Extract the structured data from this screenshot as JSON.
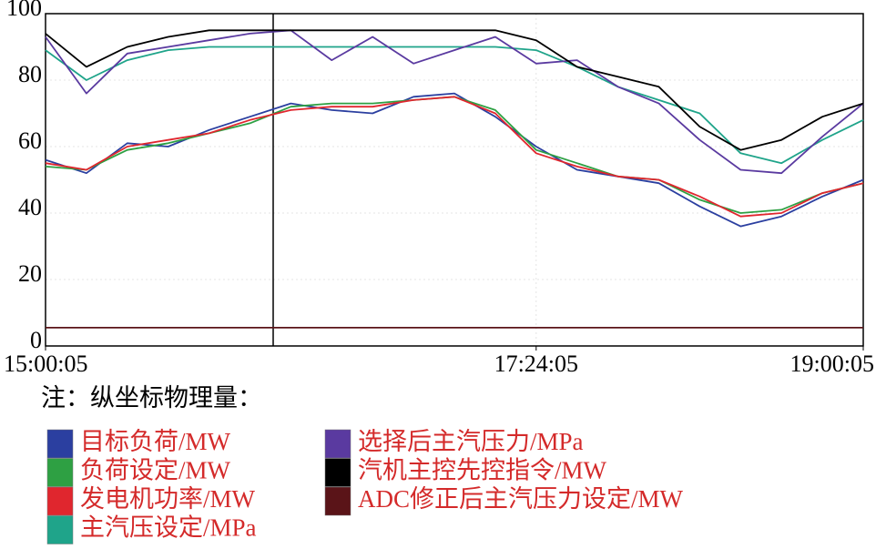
{
  "chart_data": {
    "type": "line",
    "x": [
      "15:00:05",
      "15:12:05",
      "15:24:05",
      "15:36:05",
      "15:48:05",
      "16:00:05",
      "16:12:05",
      "16:24:05",
      "16:36:05",
      "16:48:05",
      "17:00:05",
      "17:12:05",
      "17:24:05",
      "17:36:05",
      "17:48:05",
      "18:00:05",
      "18:12:05",
      "18:24:05",
      "18:36:05",
      "18:48:05",
      "19:00:05"
    ],
    "series": [
      {
        "name": "目标负荷/MW",
        "color": "#2b3fa0",
        "values": [
          56,
          52,
          61,
          60,
          65,
          69,
          73,
          71,
          70,
          75,
          76,
          69,
          60,
          53,
          51,
          49,
          42,
          36,
          39,
          45,
          50
        ]
      },
      {
        "name": "负荷设定/MW",
        "color": "#2ea043",
        "values": [
          54,
          53,
          59,
          61,
          64,
          67,
          72,
          73,
          73,
          74,
          75,
          71,
          59,
          55,
          51,
          50,
          44,
          40,
          41,
          46,
          49
        ]
      },
      {
        "name": "发电机功率/MW",
        "color": "#e0262e",
        "values": [
          55,
          53,
          60,
          62,
          64,
          68,
          71,
          72,
          72,
          74,
          75,
          70,
          58,
          54,
          51,
          50,
          45,
          39,
          40,
          46,
          49
        ]
      },
      {
        "name": "主汽压设定/MPa",
        "color": "#1fa48a",
        "values": [
          89,
          80,
          86,
          89,
          90,
          90,
          90,
          90,
          90,
          90,
          90,
          90,
          89,
          84,
          78,
          74,
          70,
          58,
          55,
          62,
          68
        ]
      },
      {
        "name": "选择后主汽压力/MPa",
        "color": "#5a3aa0",
        "values": [
          93,
          76,
          88,
          90,
          92,
          94,
          95,
          86,
          93,
          85,
          89,
          93,
          85,
          86,
          78,
          73,
          62,
          53,
          52,
          63,
          73
        ]
      },
      {
        "name": "汽机主控先控指令/MW",
        "color": "#000000",
        "values": [
          94,
          84,
          90,
          93,
          95,
          95,
          95,
          95,
          95,
          95,
          95,
          95,
          92,
          84,
          81,
          78,
          66,
          59,
          62,
          69,
          73
        ]
      },
      {
        "name": "ADC修正后主汽压力设定/MW",
        "color": "#5a1418",
        "values": [
          5.5,
          5.5,
          5.5,
          5.5,
          5.5,
          5.5,
          5.5,
          5.5,
          5.5,
          5.5,
          5.5,
          5.5,
          5.5,
          5.5,
          5.5,
          5.5,
          5.5,
          5.5,
          5.5,
          5.5,
          5.5
        ]
      }
    ],
    "xlim": [
      "15:00:05",
      "19:00:05"
    ],
    "xticks": [
      "15:00:05",
      "17:24:05",
      "19:00:05"
    ],
    "ylim": [
      0,
      100
    ],
    "yticks": [
      0,
      20,
      40,
      60,
      80,
      100
    ],
    "grid": true,
    "legend_title": "注：纵坐标物理量："
  }
}
